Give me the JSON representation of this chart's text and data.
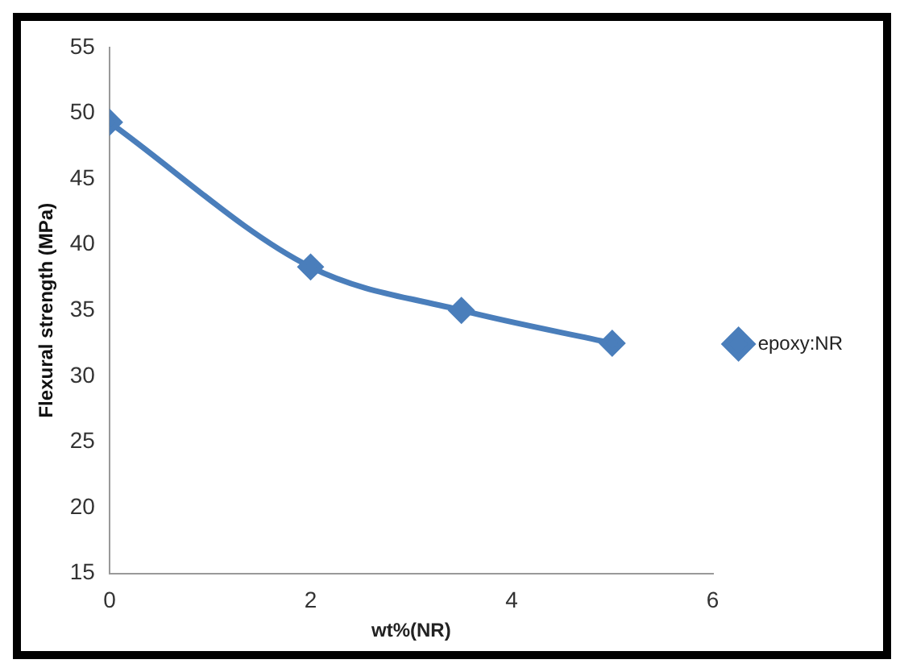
{
  "chart_data": {
    "type": "line",
    "xlabel": "wt%(NR)",
    "ylabel": "Flexural strength (MPa)",
    "x": [
      0,
      2,
      3.5,
      5
    ],
    "series": [
      {
        "name": "epoxy:NR",
        "color": "#4a7ebb",
        "values": [
          49.3,
          38.3,
          35,
          32.5
        ]
      }
    ],
    "xlim": [
      0,
      6
    ],
    "xticks": [
      0,
      2,
      4,
      6
    ],
    "ylim": [
      15,
      55
    ],
    "yticks": [
      15,
      20,
      25,
      30,
      35,
      40,
      45,
      50,
      55
    ],
    "grid": false,
    "legend": "right",
    "marker": "diamond",
    "line_style": "solid"
  }
}
